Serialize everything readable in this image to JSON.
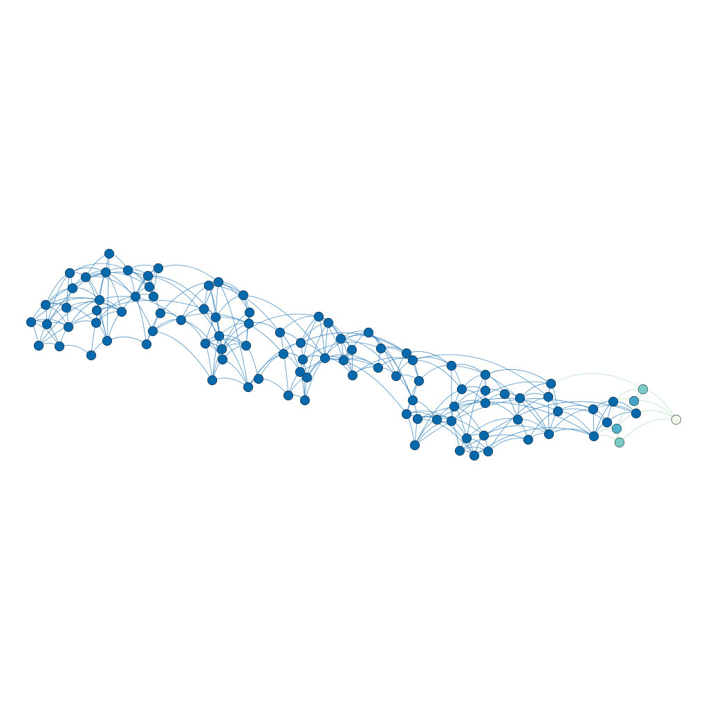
{
  "diagram": {
    "type": "network-graph",
    "colors": {
      "background": "#ffffff",
      "node_default": "#0868ac",
      "edge_default": "#2b7bb9",
      "node_outline": "#1a2b3a",
      "edge_pale": "#a8ddb5"
    },
    "node_count": 120,
    "gradient_nodes": [
      {
        "id": "g1",
        "color": "#7bccc4"
      },
      {
        "id": "g2",
        "color": "#43a2ca"
      },
      {
        "id": "g3",
        "color": "#4eb3c8"
      },
      {
        "id": "g4",
        "color": "#7bccc4"
      },
      {
        "id": "g5",
        "color": "#f0f9e8"
      }
    ]
  }
}
